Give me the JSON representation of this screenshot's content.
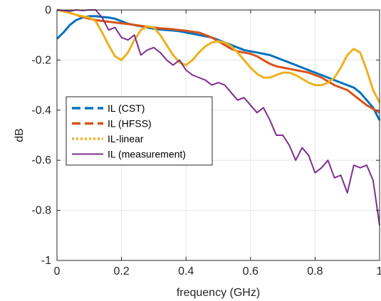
{
  "chart_data": {
    "type": "line",
    "title": "",
    "xlabel": "frequency (GHz)",
    "ylabel": "dB",
    "xlim": [
      0,
      1
    ],
    "ylim": [
      -1,
      0
    ],
    "x_ticks": [
      0,
      0.2,
      0.4,
      0.6,
      0.8,
      1
    ],
    "x_tick_labels": [
      "0",
      "0.2",
      "0.4",
      "0.6",
      "0.8",
      "1"
    ],
    "y_ticks": [
      0,
      -0.2,
      -0.4,
      -0.6,
      -0.8,
      -1
    ],
    "y_tick_labels": [
      "0",
      "-0.2",
      "-0.4",
      "-0.6",
      "-0.8",
      "-1"
    ],
    "grid": true,
    "legend_position": "middle-left",
    "series": [
      {
        "name": "IL (CST)",
        "color": "#0072BD",
        "style": "dashed",
        "x": [
          0,
          0.02,
          0.04,
          0.06,
          0.08,
          0.1,
          0.12,
          0.14,
          0.16,
          0.18,
          0.2,
          0.22,
          0.24,
          0.26,
          0.28,
          0.3,
          0.32,
          0.34,
          0.36,
          0.38,
          0.4,
          0.42,
          0.44,
          0.46,
          0.48,
          0.5,
          0.52,
          0.54,
          0.56,
          0.58,
          0.6,
          0.62,
          0.64,
          0.66,
          0.68,
          0.7,
          0.72,
          0.74,
          0.76,
          0.78,
          0.8,
          0.82,
          0.84,
          0.86,
          0.88,
          0.9,
          0.92,
          0.94,
          0.96,
          0.98,
          1.0
        ],
        "y": [
          -0.115,
          -0.09,
          -0.06,
          -0.04,
          -0.03,
          -0.025,
          -0.025,
          -0.028,
          -0.03,
          -0.035,
          -0.045,
          -0.055,
          -0.06,
          -0.065,
          -0.07,
          -0.075,
          -0.078,
          -0.08,
          -0.082,
          -0.085,
          -0.09,
          -0.095,
          -0.1,
          -0.105,
          -0.11,
          -0.12,
          -0.13,
          -0.14,
          -0.15,
          -0.16,
          -0.165,
          -0.17,
          -0.175,
          -0.18,
          -0.19,
          -0.2,
          -0.21,
          -0.22,
          -0.23,
          -0.24,
          -0.25,
          -0.26,
          -0.27,
          -0.28,
          -0.29,
          -0.3,
          -0.31,
          -0.33,
          -0.36,
          -0.39,
          -0.44
        ]
      },
      {
        "name": "IL (HFSS)",
        "color": "#D95319",
        "style": "dashed",
        "x": [
          0,
          0.02,
          0.04,
          0.06,
          0.08,
          0.1,
          0.12,
          0.14,
          0.16,
          0.18,
          0.2,
          0.22,
          0.24,
          0.26,
          0.28,
          0.3,
          0.32,
          0.34,
          0.36,
          0.38,
          0.4,
          0.42,
          0.44,
          0.46,
          0.48,
          0.5,
          0.52,
          0.54,
          0.56,
          0.58,
          0.6,
          0.62,
          0.64,
          0.66,
          0.68,
          0.7,
          0.72,
          0.74,
          0.76,
          0.78,
          0.8,
          0.82,
          0.84,
          0.86,
          0.88,
          0.9,
          0.92,
          0.94,
          0.96,
          0.98,
          1.0
        ],
        "y": [
          0,
          -0.005,
          -0.012,
          -0.02,
          -0.028,
          -0.035,
          -0.04,
          -0.044,
          -0.047,
          -0.05,
          -0.053,
          -0.056,
          -0.06,
          -0.063,
          -0.067,
          -0.07,
          -0.073,
          -0.075,
          -0.077,
          -0.08,
          -0.083,
          -0.087,
          -0.09,
          -0.1,
          -0.11,
          -0.125,
          -0.14,
          -0.155,
          -0.165,
          -0.17,
          -0.175,
          -0.185,
          -0.2,
          -0.215,
          -0.225,
          -0.23,
          -0.235,
          -0.24,
          -0.245,
          -0.25,
          -0.26,
          -0.27,
          -0.285,
          -0.3,
          -0.31,
          -0.32,
          -0.34,
          -0.36,
          -0.38,
          -0.395,
          -0.41
        ]
      },
      {
        "name": "IL-linear",
        "color": "#EDB120",
        "style": "dotted",
        "x": [
          0,
          0.02,
          0.04,
          0.06,
          0.08,
          0.1,
          0.12,
          0.14,
          0.16,
          0.18,
          0.2,
          0.22,
          0.24,
          0.26,
          0.28,
          0.3,
          0.32,
          0.34,
          0.36,
          0.38,
          0.4,
          0.42,
          0.44,
          0.46,
          0.48,
          0.5,
          0.52,
          0.54,
          0.56,
          0.58,
          0.6,
          0.62,
          0.64,
          0.66,
          0.68,
          0.7,
          0.72,
          0.74,
          0.76,
          0.78,
          0.8,
          0.82,
          0.84,
          0.86,
          0.88,
          0.9,
          0.92,
          0.94,
          0.96,
          0.98,
          1.0
        ],
        "y": [
          0,
          -0.005,
          -0.012,
          -0.02,
          -0.025,
          -0.03,
          -0.045,
          -0.09,
          -0.14,
          -0.185,
          -0.2,
          -0.17,
          -0.12,
          -0.08,
          -0.065,
          -0.07,
          -0.1,
          -0.14,
          -0.18,
          -0.21,
          -0.22,
          -0.2,
          -0.17,
          -0.145,
          -0.13,
          -0.125,
          -0.13,
          -0.145,
          -0.17,
          -0.2,
          -0.23,
          -0.255,
          -0.27,
          -0.27,
          -0.26,
          -0.25,
          -0.25,
          -0.26,
          -0.275,
          -0.29,
          -0.3,
          -0.3,
          -0.29,
          -0.27,
          -0.23,
          -0.18,
          -0.155,
          -0.17,
          -0.24,
          -0.32,
          -0.37
        ]
      },
      {
        "name": "IL (measurement)",
        "color": "#7E2F8E",
        "style": "solid",
        "x": [
          0,
          0.02,
          0.04,
          0.06,
          0.08,
          0.1,
          0.12,
          0.14,
          0.16,
          0.18,
          0.2,
          0.22,
          0.24,
          0.26,
          0.28,
          0.3,
          0.32,
          0.34,
          0.36,
          0.38,
          0.4,
          0.42,
          0.44,
          0.46,
          0.48,
          0.5,
          0.52,
          0.54,
          0.56,
          0.58,
          0.6,
          0.62,
          0.64,
          0.66,
          0.68,
          0.7,
          0.72,
          0.74,
          0.76,
          0.78,
          0.8,
          0.82,
          0.84,
          0.86,
          0.88,
          0.9,
          0.92,
          0.94,
          0.96,
          0.98,
          1.0
        ],
        "y": [
          0,
          -0.002,
          -0.005,
          0,
          -0.002,
          0,
          0,
          -0.03,
          -0.08,
          -0.07,
          -0.11,
          -0.12,
          -0.1,
          -0.18,
          -0.16,
          -0.15,
          -0.17,
          -0.2,
          -0.22,
          -0.2,
          -0.24,
          -0.26,
          -0.27,
          -0.28,
          -0.3,
          -0.29,
          -0.3,
          -0.33,
          -0.36,
          -0.35,
          -0.38,
          -0.41,
          -0.39,
          -0.44,
          -0.5,
          -0.5,
          -0.54,
          -0.6,
          -0.55,
          -0.58,
          -0.65,
          -0.63,
          -0.6,
          -0.67,
          -0.66,
          -0.73,
          -0.62,
          -0.63,
          -0.62,
          -0.68,
          -0.86
        ]
      }
    ]
  }
}
